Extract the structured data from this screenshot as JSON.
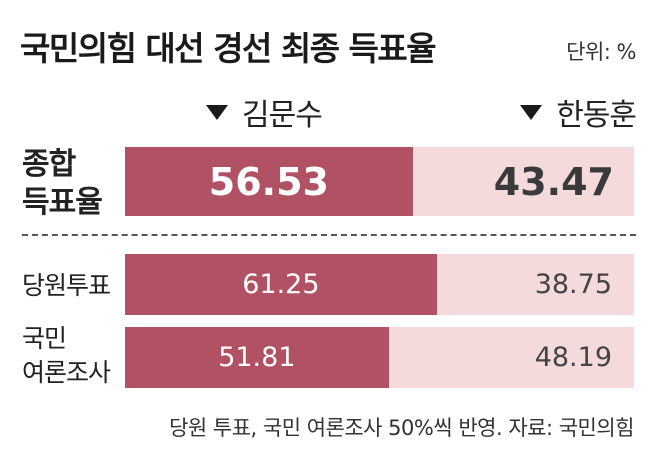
{
  "title": "국민의힘 대선 경선 최종 득표율",
  "unit": "단위: %",
  "chart_data": {
    "type": "bar",
    "stacked": true,
    "orientation": "horizontal",
    "title": "국민의힘 대선 경선 최종 득표율",
    "unit": "단위: %",
    "categories": [
      "종합 득표율",
      "당원투표",
      "국민 여론조사"
    ],
    "series": [
      {
        "name": "김문수",
        "values": [
          56.53,
          61.25,
          51.81
        ],
        "labels": [
          "56.53",
          "61.25",
          "51.81"
        ],
        "color": "#b05264"
      },
      {
        "name": "한동훈",
        "values": [
          43.47,
          38.75,
          48.19
        ],
        "labels": [
          "43.47",
          "38.75",
          "48.19"
        ],
        "color": "#f4dada"
      }
    ],
    "xlim": [
      0,
      100
    ],
    "legend": "top"
  },
  "rows": [
    {
      "label_lines": [
        "종합",
        "득표율"
      ]
    },
    {
      "label_lines": [
        "당원투표"
      ]
    },
    {
      "label_lines": [
        "국민",
        "여론조사"
      ]
    }
  ],
  "footer": "당원 투표, 국민 여론조사 50%씩 반영.  자료: 국민의힘"
}
